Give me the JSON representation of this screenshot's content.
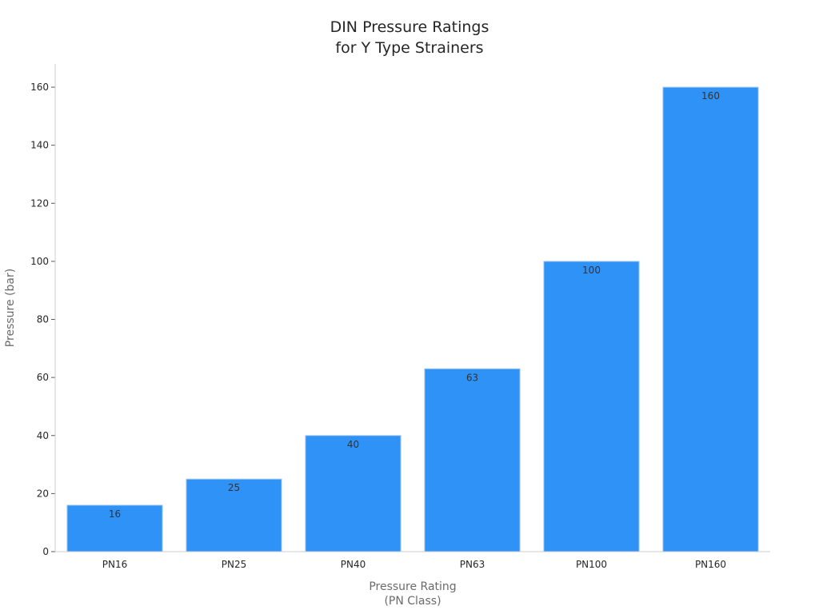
{
  "chart_data": {
    "type": "bar",
    "title_lines": [
      "DIN Pressure Ratings",
      "for Y Type Strainers"
    ],
    "xlabel_lines": [
      "Pressure Rating",
      "(PN Class)"
    ],
    "ylabel": "Pressure (bar)",
    "categories": [
      "PN16",
      "PN25",
      "PN40",
      "PN63",
      "PN100",
      "PN160"
    ],
    "values": [
      16,
      25,
      40,
      63,
      100,
      160
    ],
    "ylim": [
      0,
      168
    ],
    "yticks": [
      0,
      20,
      40,
      60,
      80,
      100,
      120,
      140,
      160
    ],
    "bar_color": "#2f92f7",
    "bar_edge_color": "#a9c9f2",
    "grid": false,
    "legend": "none"
  }
}
